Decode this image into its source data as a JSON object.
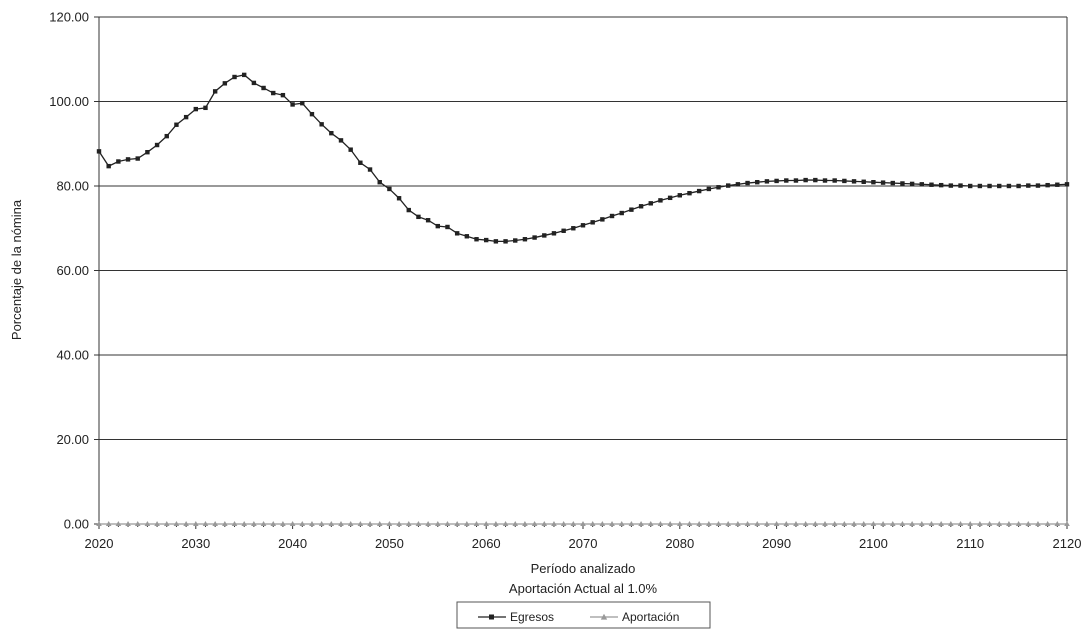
{
  "chart_data": {
    "type": "line",
    "title": "",
    "xlabel": "Período analizado",
    "xlabel2": "Aportación Actual al 1.0%",
    "ylabel": "Porcentaje de la nómina",
    "xlim": [
      2020,
      2120
    ],
    "ylim": [
      0,
      120
    ],
    "x_ticks": [
      "2020",
      "2030",
      "2040",
      "2050",
      "2060",
      "2070",
      "2080",
      "2090",
      "2100",
      "2110",
      "2120"
    ],
    "y_ticks": [
      "0.00",
      "20.00",
      "40.00",
      "60.00",
      "80.00",
      "100.00",
      "120.00"
    ],
    "grid": "horizontal",
    "legend_position": "bottom",
    "x_start": 2020,
    "series": [
      {
        "name": "Egresos",
        "color": "#222222",
        "marker": "square",
        "values": [
          88.2,
          84.7,
          85.8,
          86.3,
          86.5,
          88.0,
          89.7,
          91.8,
          94.5,
          96.3,
          98.2,
          98.5,
          102.4,
          104.3,
          105.8,
          106.3,
          104.4,
          103.2,
          102.0,
          101.5,
          99.3,
          99.6,
          97.0,
          94.6,
          92.5,
          90.8,
          88.6,
          85.5,
          83.9,
          80.9,
          79.3,
          77.1,
          74.3,
          72.7,
          71.9,
          70.5,
          70.3,
          68.8,
          68.1,
          67.4,
          67.2,
          66.9,
          66.9,
          67.1,
          67.4,
          67.8,
          68.3,
          68.8,
          69.4,
          70.0,
          70.7,
          71.4,
          72.1,
          72.9,
          73.6,
          74.4,
          75.2,
          75.9,
          76.6,
          77.2,
          77.8,
          78.3,
          78.8,
          79.3,
          79.7,
          80.1,
          80.4,
          80.7,
          80.9,
          81.1,
          81.2,
          81.3,
          81.3,
          81.4,
          81.4,
          81.3,
          81.3,
          81.2,
          81.1,
          81.0,
          80.9,
          80.8,
          80.7,
          80.6,
          80.5,
          80.4,
          80.3,
          80.2,
          80.1,
          80.1,
          80.0,
          80.0,
          80.0,
          80.0,
          80.0,
          80.0,
          80.1,
          80.1,
          80.2,
          80.3,
          80.4
        ]
      },
      {
        "name": "Aportación",
        "color": "#999999",
        "marker": "triangle",
        "values": [
          0,
          0,
          0,
          0,
          0,
          0,
          0,
          0,
          0,
          0,
          0,
          0,
          0,
          0,
          0,
          0,
          0,
          0,
          0,
          0,
          0,
          0,
          0,
          0,
          0,
          0,
          0,
          0,
          0,
          0,
          0,
          0,
          0,
          0,
          0,
          0,
          0,
          0,
          0,
          0,
          0,
          0,
          0,
          0,
          0,
          0,
          0,
          0,
          0,
          0,
          0,
          0,
          0,
          0,
          0,
          0,
          0,
          0,
          0,
          0,
          0,
          0,
          0,
          0,
          0,
          0,
          0,
          0,
          0,
          0,
          0,
          0,
          0,
          0,
          0,
          0,
          0,
          0,
          0,
          0,
          0,
          0,
          0,
          0,
          0,
          0,
          0,
          0,
          0,
          0,
          0,
          0,
          0,
          0,
          0,
          0,
          0,
          0,
          0,
          0,
          0
        ]
      }
    ]
  }
}
